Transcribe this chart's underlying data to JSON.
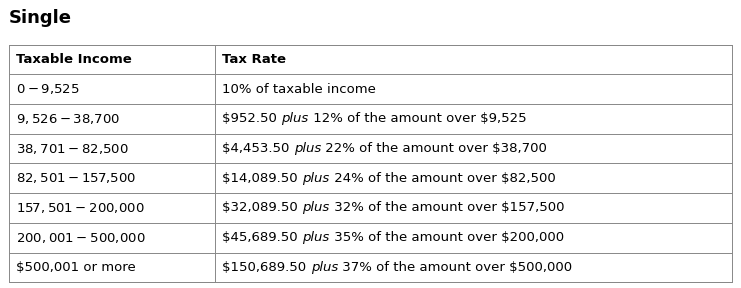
{
  "title": "Single",
  "title_fontsize": 13,
  "col_headers": [
    "Taxable Income",
    "Tax Rate"
  ],
  "col_split": 0.285,
  "rows": [
    [
      "$0 - $9,525",
      [
        "10% of taxable income"
      ]
    ],
    [
      "$9,526 - $38,700",
      [
        "$952.50 ",
        "plus",
        " 12% of the amount over $9,525"
      ]
    ],
    [
      "$38,701 - $82,500",
      [
        "$4,453.50 ",
        "plus",
        " 22% of the amount over $38,700"
      ]
    ],
    [
      "$82,501 - $157,500",
      [
        "$14,089.50 ",
        "plus",
        " 24% of the amount over $82,500"
      ]
    ],
    [
      "$157,501 - $200,000",
      [
        "$32,089.50 ",
        "plus",
        " 32% of the amount over $157,500"
      ]
    ],
    [
      "$200,001 - $500,000",
      [
        "$45,689.50 ",
        "plus",
        " 35% of the amount over $200,000"
      ]
    ],
    [
      "$500,001 or more",
      [
        "$150,689.50 ",
        "plus",
        " 37% of the amount over $500,000"
      ]
    ]
  ],
  "border_color": "#888888",
  "text_color": "#000000",
  "header_fontsize": 9.5,
  "row_fontsize": 9.5,
  "background_color": "#ffffff",
  "fig_width": 7.41,
  "fig_height": 2.88,
  "dpi": 100
}
